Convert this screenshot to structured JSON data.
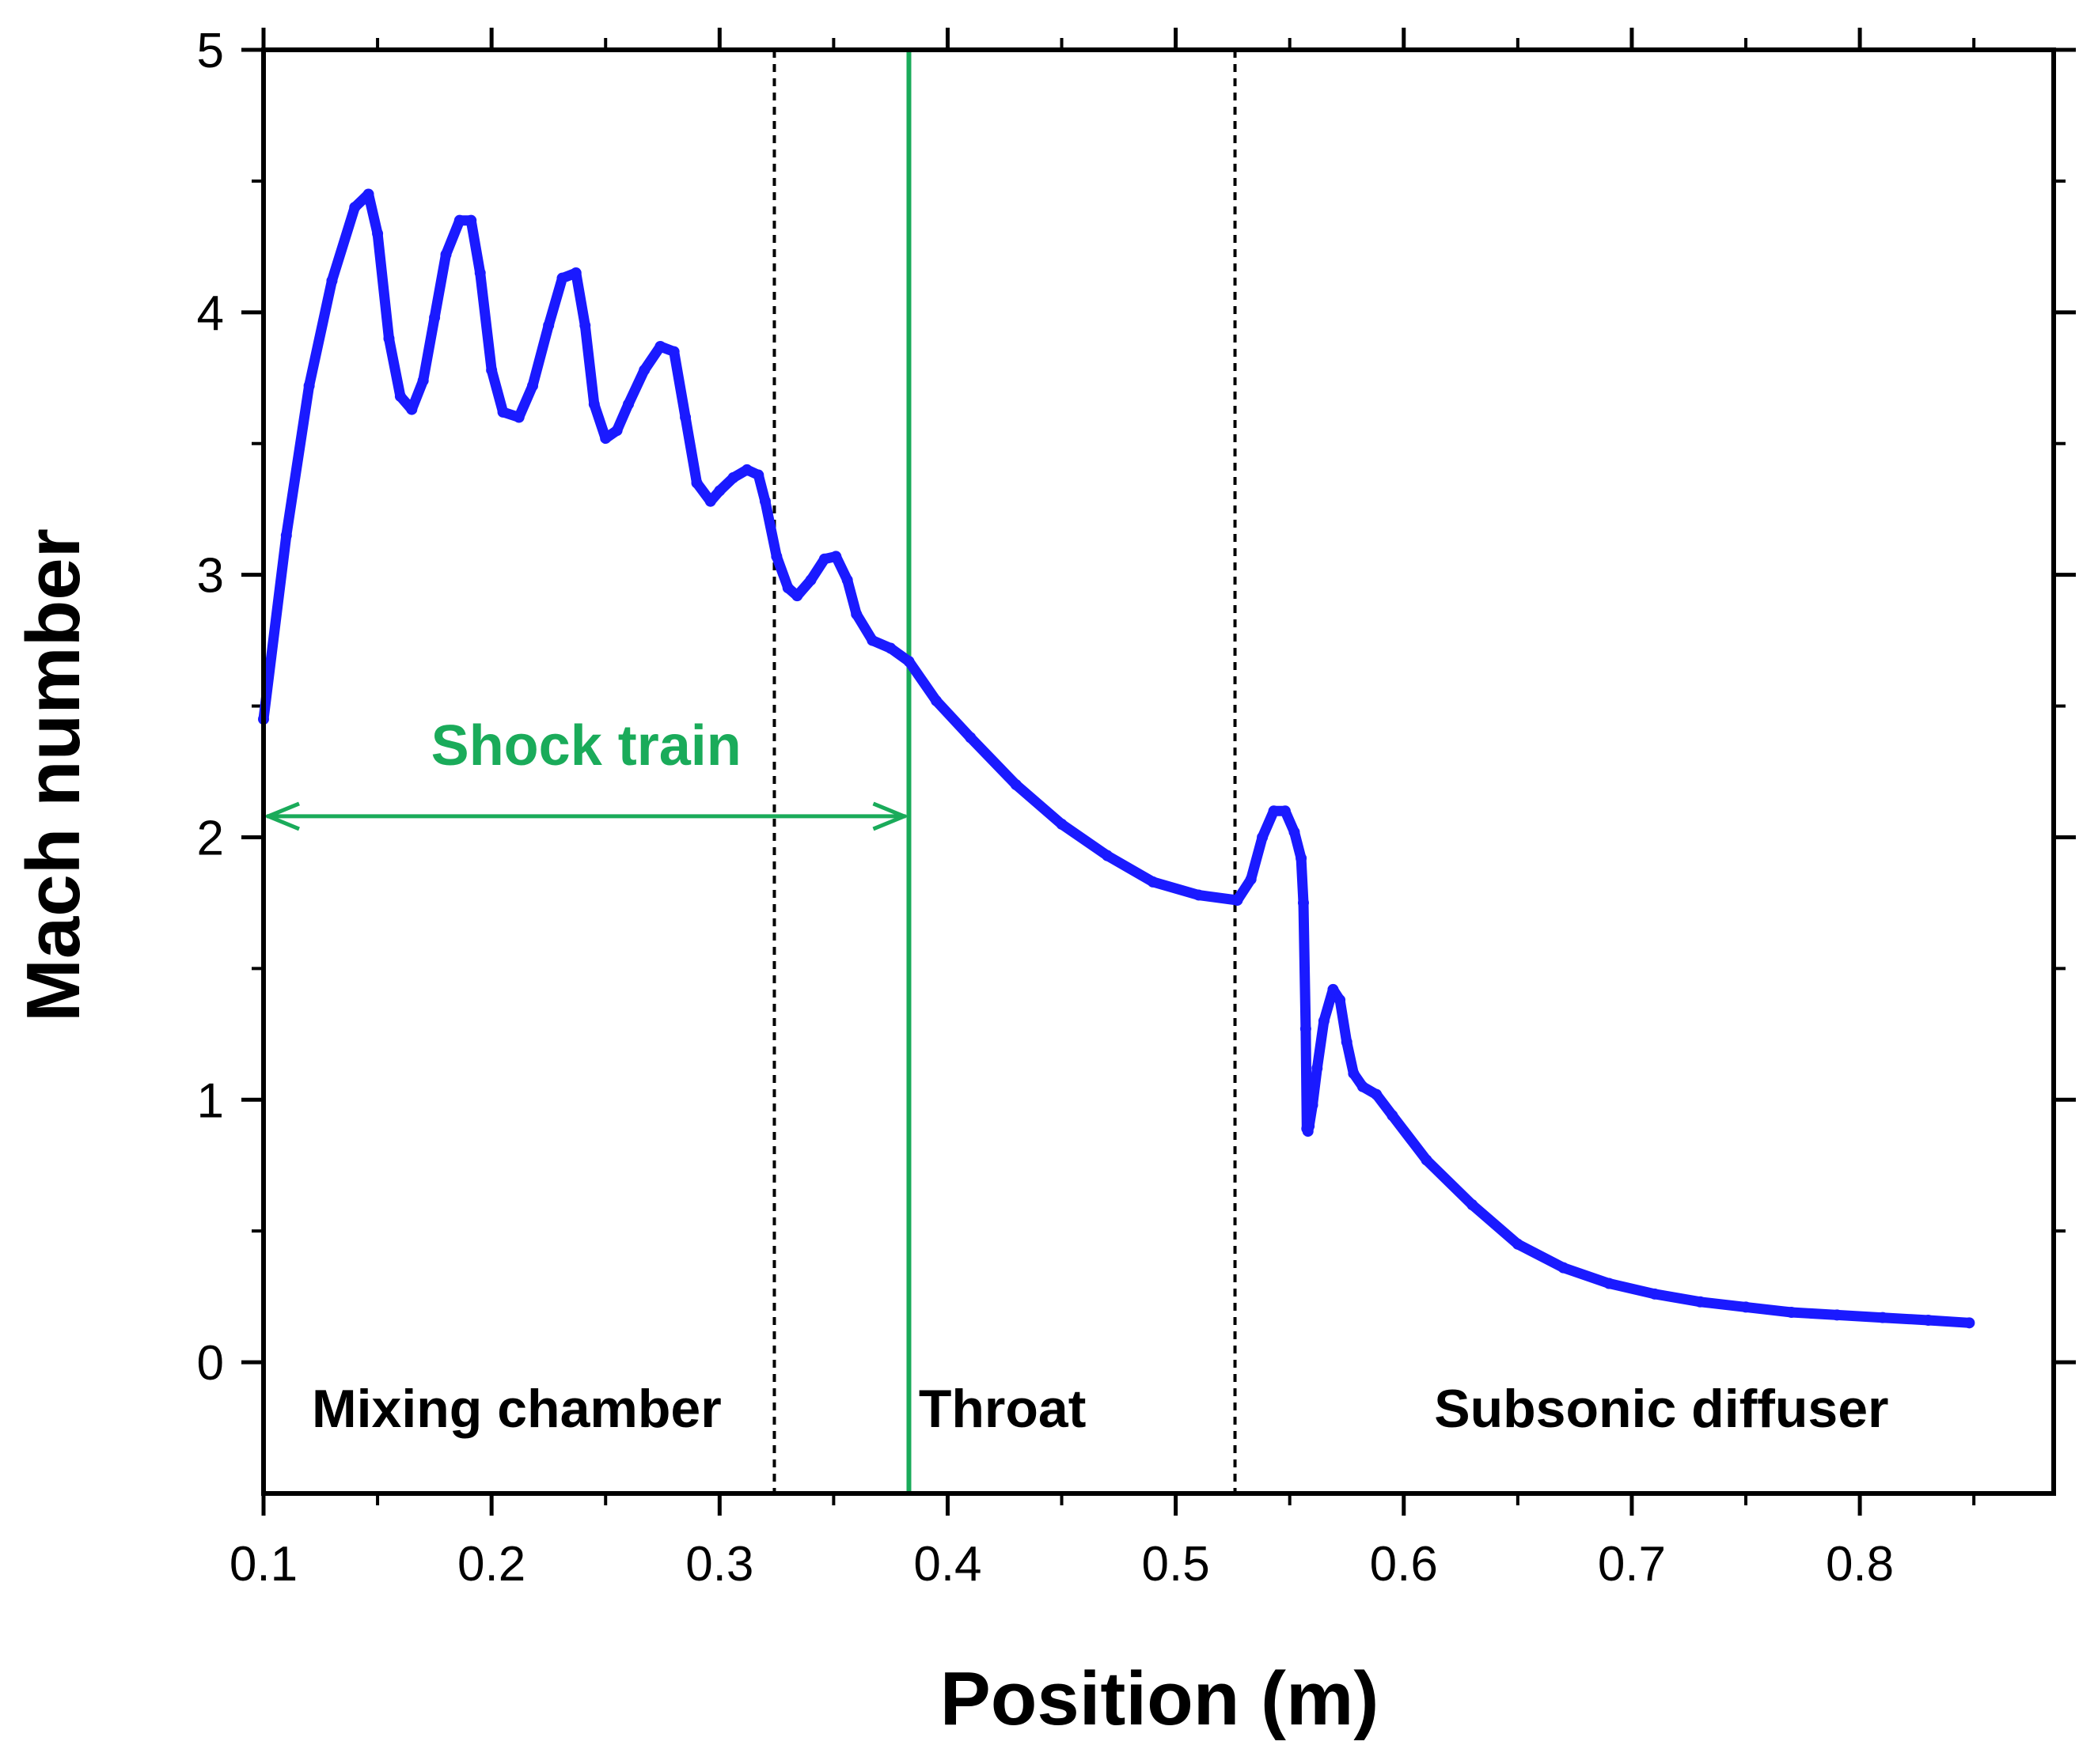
{
  "chart_data": {
    "type": "line",
    "title": "",
    "xlabel": "Position (m)",
    "ylabel": "Mach number",
    "xlim": [
      0.1,
      0.885
    ],
    "ylim": [
      -0.5,
      5
    ],
    "xticks": [
      0.1,
      0.2,
      0.3,
      0.4,
      0.5,
      0.6,
      0.7,
      0.8
    ],
    "xtick_labels": [
      "0.1",
      "0.2",
      "0.3",
      "0.4",
      "0.5",
      "0.6",
      "0.7",
      "0.8"
    ],
    "yticks": [
      0,
      1,
      2,
      3,
      4,
      5
    ],
    "ytick_labels": [
      "0",
      "1",
      "2",
      "3",
      "4",
      "5"
    ],
    "grid": false,
    "series": [
      {
        "name": "Mach number",
        "color": "#1a1aff",
        "x": [
          0.1,
          0.11,
          0.12,
          0.13,
          0.14,
          0.146,
          0.15,
          0.155,
          0.16,
          0.165,
          0.17,
          0.175,
          0.18,
          0.186,
          0.191,
          0.195,
          0.2,
          0.205,
          0.212,
          0.218,
          0.225,
          0.231,
          0.237,
          0.241,
          0.245,
          0.25,
          0.255,
          0.26,
          0.267,
          0.274,
          0.28,
          0.285,
          0.29,
          0.296,
          0.3,
          0.306,
          0.312,
          0.317,
          0.32,
          0.325,
          0.33,
          0.334,
          0.34,
          0.346,
          0.351,
          0.356,
          0.36,
          0.367,
          0.375,
          0.383,
          0.395,
          0.41,
          0.43,
          0.45,
          0.47,
          0.49,
          0.51,
          0.527,
          0.533,
          0.538,
          0.543,
          0.548,
          0.552,
          0.555,
          0.556,
          0.557,
          0.5575,
          0.558,
          0.5585,
          0.56,
          0.562,
          0.565,
          0.569,
          0.572,
          0.575,
          0.578,
          0.582,
          0.588,
          0.595,
          0.61,
          0.63,
          0.65,
          0.67,
          0.69,
          0.71,
          0.73,
          0.75,
          0.77,
          0.79,
          0.81,
          0.83,
          0.848
        ],
        "y": [
          2.45,
          3.15,
          3.72,
          4.12,
          4.4,
          4.45,
          4.3,
          3.9,
          3.68,
          3.63,
          3.74,
          3.98,
          4.22,
          4.35,
          4.35,
          4.15,
          3.78,
          3.62,
          3.6,
          3.72,
          3.95,
          4.13,
          4.15,
          3.95,
          3.65,
          3.52,
          3.55,
          3.65,
          3.78,
          3.87,
          3.85,
          3.6,
          3.35,
          3.28,
          3.32,
          3.37,
          3.4,
          3.38,
          3.28,
          3.07,
          2.95,
          2.92,
          2.98,
          3.06,
          3.07,
          2.98,
          2.85,
          2.75,
          2.72,
          2.67,
          2.52,
          2.38,
          2.2,
          2.05,
          1.93,
          1.83,
          1.78,
          1.76,
          1.84,
          2.0,
          2.1,
          2.1,
          2.02,
          1.92,
          1.75,
          1.27,
          0.89,
          0.88,
          0.9,
          0.98,
          1.12,
          1.3,
          1.42,
          1.38,
          1.22,
          1.1,
          1.05,
          1.02,
          0.94,
          0.77,
          0.6,
          0.45,
          0.36,
          0.3,
          0.26,
          0.23,
          0.21,
          0.19,
          0.18,
          0.17,
          0.16,
          0.15
        ]
      }
    ],
    "vertical_lines": [
      {
        "x": 0.324,
        "style": "dotted",
        "color": "#000000"
      },
      {
        "x": 0.383,
        "style": "solid",
        "color": "#1aab5a"
      },
      {
        "x": 0.526,
        "style": "dotted",
        "color": "#000000"
      }
    ],
    "annotations": [
      {
        "text": "Shock train",
        "kind": "double-arrow",
        "x_start": 0.1,
        "x_end": 0.383,
        "y": 2.08,
        "color": "#1aab5a"
      }
    ],
    "regions": [
      {
        "label": "Mixing chamber",
        "x_center": 0.211
      },
      {
        "label": "Throat",
        "x_center": 0.424
      },
      {
        "label": "Subsonic diffuser",
        "x_center": 0.713
      }
    ],
    "region_label_y": -0.18
  }
}
